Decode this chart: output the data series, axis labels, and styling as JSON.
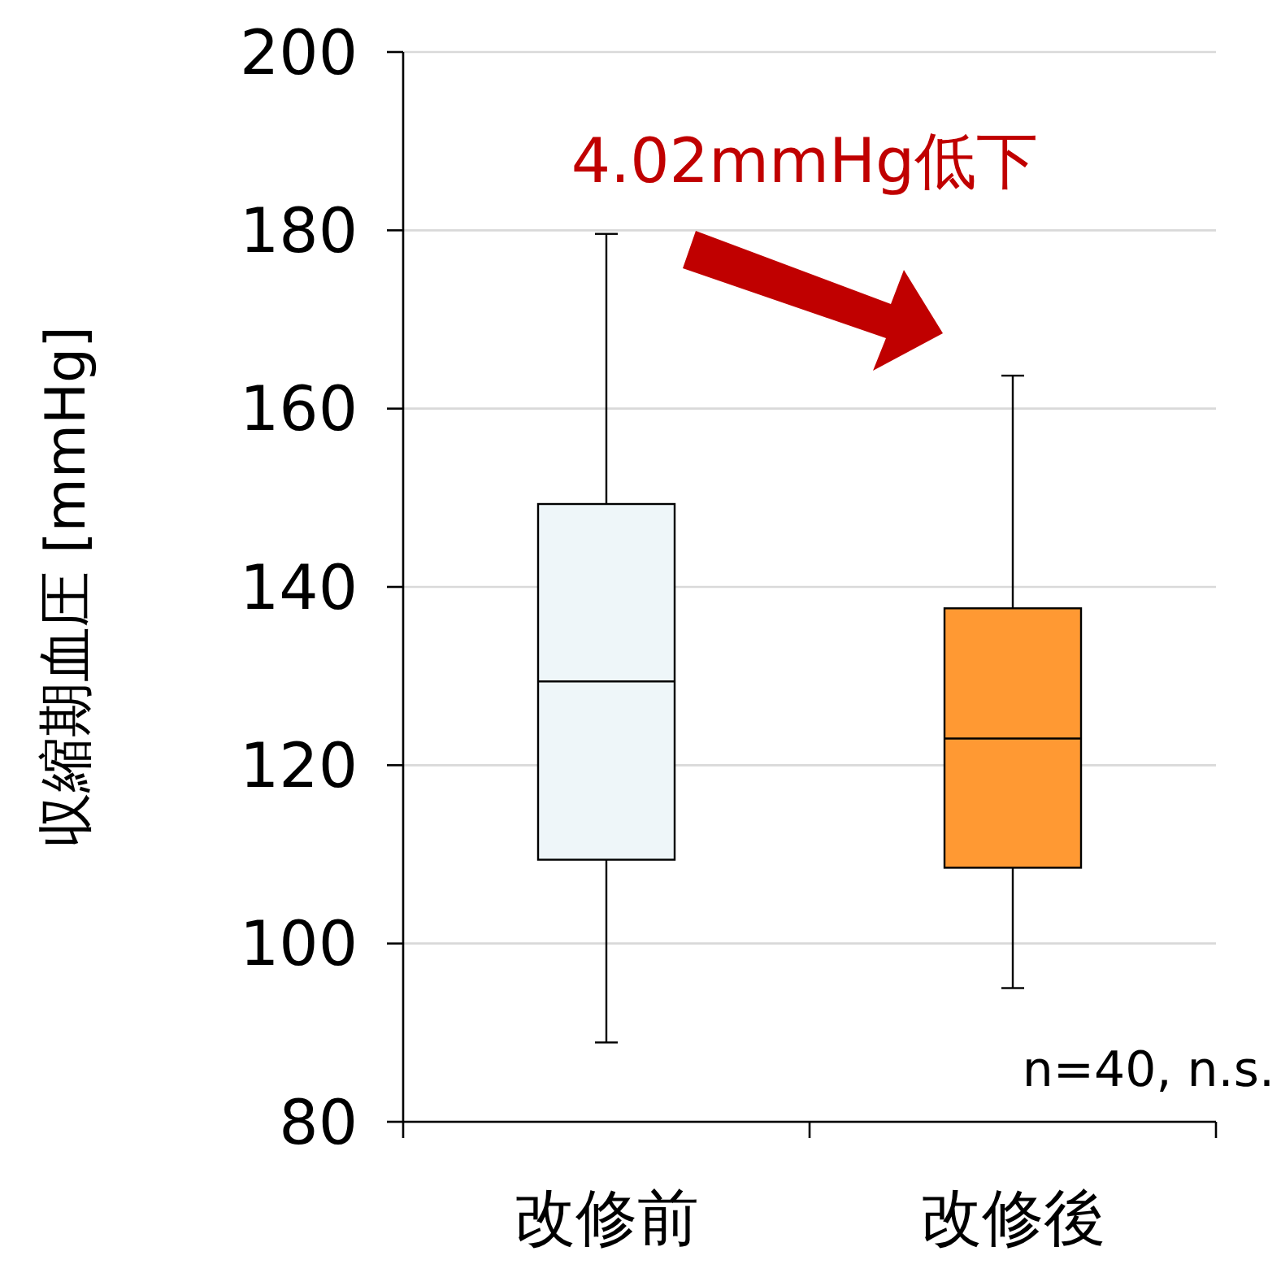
{
  "chart_data": {
    "type": "box",
    "ylabel": "収縮期血圧 [mmHg]",
    "categories": [
      "改修前",
      "改修後"
    ],
    "boxes": [
      {
        "low": 88.9,
        "q1": 109.4,
        "median": 129.4,
        "q3": 149.3,
        "high": 179.6
      },
      {
        "low": 95.0,
        "q1": 108.5,
        "median": 123.0,
        "q3": 137.6,
        "high": 163.7
      }
    ],
    "colors": [
      "#eef6f9",
      "#ff9933"
    ],
    "ylim": [
      80,
      200
    ],
    "yticks": [
      80,
      100,
      120,
      140,
      160,
      180,
      200
    ],
    "grid": "y",
    "annotations": [
      "4.02mmHg低下",
      "n=40, n.s."
    ]
  }
}
